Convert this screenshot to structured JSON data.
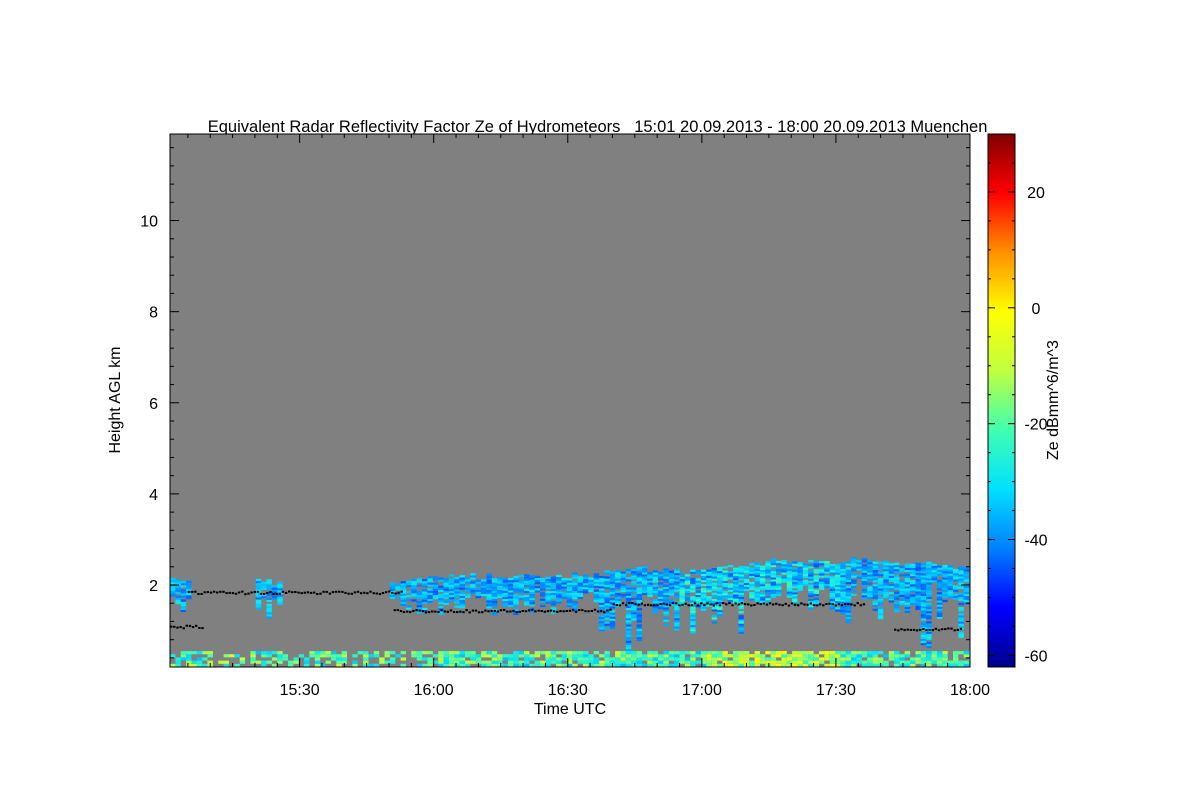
{
  "chart_data": {
    "type": "heatmap",
    "title": "Equivalent Radar Reflectivity Factor Ze of Hydrometeors",
    "subtitle": "15:01 20.09.2013 - 18:00 20.09.2013 Muenchen",
    "xlabel": "Time UTC",
    "ylabel": "Height AGL km",
    "colorbar_label": "Ze dBmm^6/m^3",
    "x_ticks": [
      "15:30",
      "16:00",
      "16:30",
      "17:00",
      "17:30",
      "18:00"
    ],
    "y_ticks": [
      "2",
      "4",
      "6",
      "8",
      "10"
    ],
    "colorbar_ticks": [
      "20",
      "0",
      "-20",
      "-40",
      "-60"
    ],
    "xlim": [
      "15:01",
      "18:00"
    ],
    "ylim": [
      0.2,
      11.9
    ],
    "colorbar_range": [
      -62,
      30
    ],
    "background_color": "#808080",
    "colormap": [
      "#00008a",
      "#0000ff",
      "#0080ff",
      "#00e0ff",
      "#40ffb0",
      "#c0ff40",
      "#ffff00",
      "#ff9000",
      "#ff0000",
      "#800000"
    ],
    "cloud_top_km": {
      "time_min": [
        1,
        5,
        10,
        15,
        20,
        25,
        30,
        35,
        40,
        45,
        50,
        55,
        60,
        65,
        70,
        75,
        80,
        85,
        90,
        95,
        100,
        105,
        110,
        115,
        120,
        125,
        130,
        135,
        140,
        145,
        150,
        155,
        160,
        165,
        170,
        175,
        179
      ],
      "top_km": [
        2.1,
        2.05,
        0,
        0,
        2.1,
        2.05,
        0,
        0,
        0,
        0,
        2.05,
        2.1,
        2.15,
        2.2,
        2.2,
        2.15,
        2.2,
        2.2,
        2.25,
        2.2,
        2.3,
        2.35,
        2.3,
        2.3,
        2.35,
        2.4,
        2.45,
        2.55,
        2.5,
        2.5,
        2.5,
        2.55,
        2.5,
        2.45,
        2.45,
        2.4,
        2.4
      ]
    },
    "cloud_base_km": {
      "segments": [
        {
          "t_start": 1,
          "t_end": 8,
          "height": 1.1
        },
        {
          "t_start": 5,
          "t_end": 53,
          "height": 1.85
        },
        {
          "t_start": 51,
          "t_end": 100,
          "height": 1.45
        },
        {
          "t_start": 100,
          "t_end": 156,
          "height": 1.6
        },
        {
          "t_start": 163,
          "t_end": 178,
          "height": 1.05
        }
      ]
    },
    "surface_clutter_km": [
      0.2,
      0.55
    ],
    "reflectivity_typical_dBZ": [
      -45,
      -25
    ]
  }
}
